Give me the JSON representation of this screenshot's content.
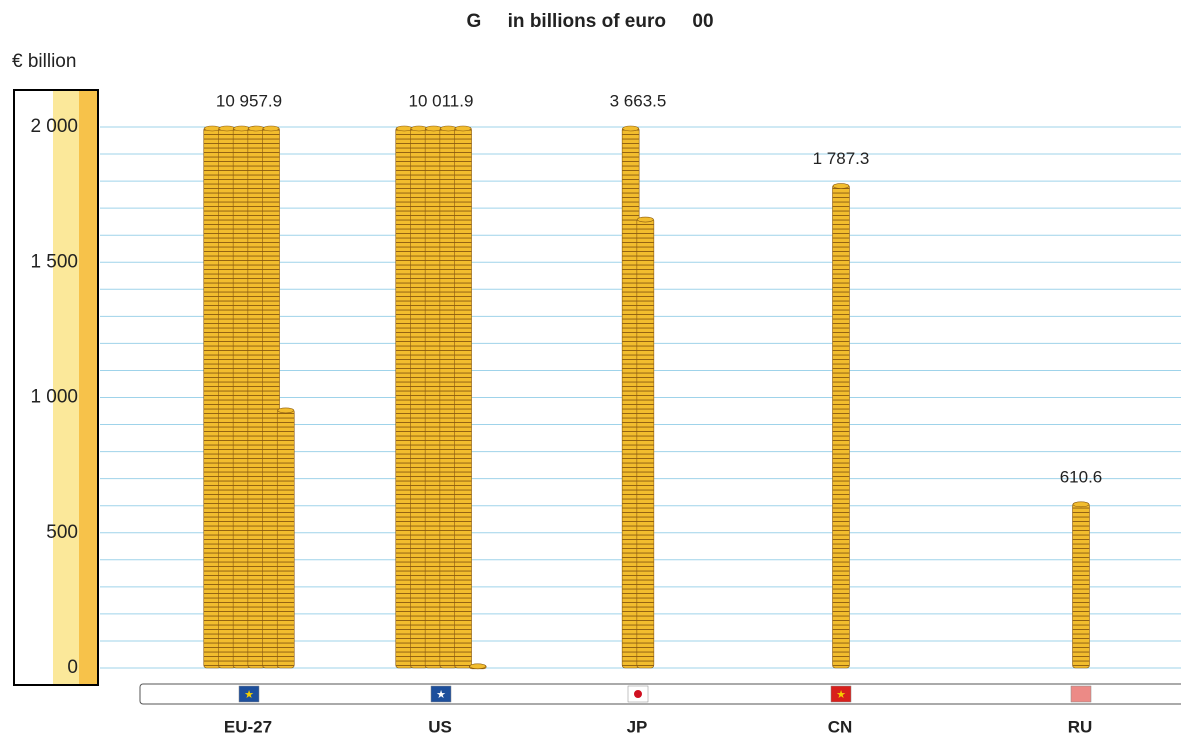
{
  "chart_data": {
    "type": "coin-stack",
    "title": "G     in billions of euro     00",
    "y_axis_label": "€ billion",
    "categories": [
      "EU-27",
      "US",
      "JP",
      "CN",
      "RU"
    ],
    "values": [
      10957.9,
      10011.9,
      3663.5,
      1787.3,
      610.6
    ],
    "value_labels": [
      "10 957.9",
      "10 011.9",
      "3 663.5",
      "1 787.3",
      "610.6"
    ],
    "color": "#f2bd2e",
    "ylim": [
      0,
      2000
    ],
    "yticks": [
      0,
      500,
      {
        "value": 1000,
        "label": "1 000"
      },
      {
        "value": 1500,
        "label": "1 500"
      },
      {
        "value": 2000,
        "label": "2 000"
      }
    ],
    "grid": true,
    "gridlines": [
      0,
      100,
      200,
      300,
      400,
      500,
      600,
      700,
      800,
      900,
      1000,
      1100,
      1200,
      1300,
      1400,
      1500,
      1600,
      1700,
      1800,
      1900,
      2000
    ]
  }
}
